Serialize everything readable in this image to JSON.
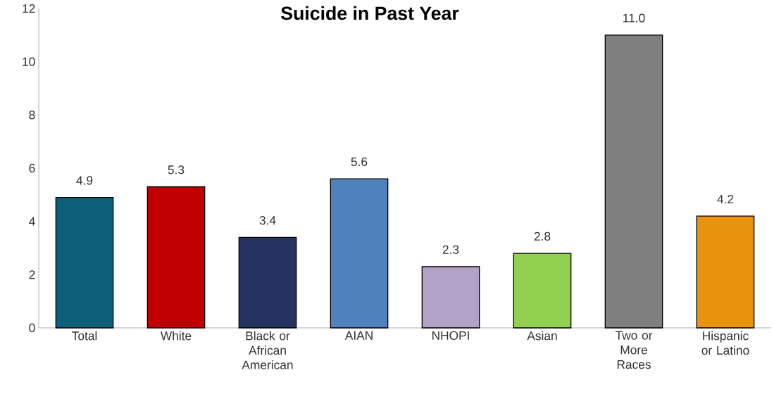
{
  "chart_data": {
    "type": "bar",
    "title": "Suicide in Past Year",
    "categories": [
      "Total",
      "White",
      "Black or African American",
      "AIAN",
      "NHOPI",
      "Asian",
      "Two or More Races",
      "Hispanic or Latino"
    ],
    "values": [
      4.9,
      5.3,
      3.4,
      5.6,
      2.3,
      2.8,
      11.0,
      4.2
    ],
    "colors": [
      "#0e5f7a",
      "#c00000",
      "#243360",
      "#4f81bd",
      "#b3a2c7",
      "#92d050",
      "#7f7f7f",
      "#e8920e"
    ],
    "value_labels": [
      "4.9",
      "5.3",
      "3.4",
      "5.6",
      "2.3",
      "2.8",
      "11.0",
      "4.2"
    ],
    "ylim": [
      0,
      12
    ],
    "yticks": [
      0,
      2,
      4,
      6,
      8,
      10,
      12
    ],
    "grid": false
  }
}
